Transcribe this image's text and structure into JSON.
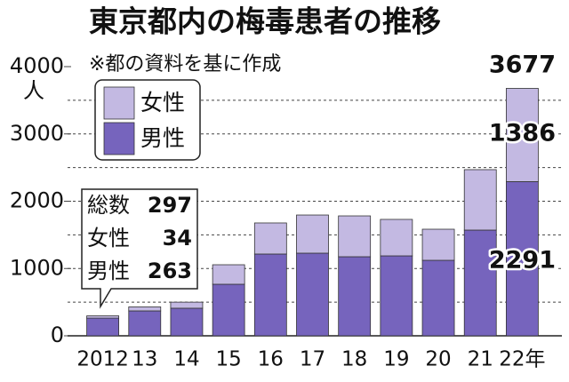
{
  "chart_data": {
    "type": "stacked_bar",
    "title": "東京都内の梅毒患者の推移",
    "subtitle": "※都の資料を基に作成",
    "y_label": "人",
    "categories": [
      "2012",
      "13",
      "14",
      "15",
      "16",
      "17",
      "18",
      "19",
      "20",
      "21",
      "22年"
    ],
    "series": [
      {
        "name": "男性",
        "color": "#7664bd",
        "values": [
          263,
          370,
          410,
          766,
          1215,
          1228,
          1175,
          1188,
          1122,
          1571,
          2291
        ]
      },
      {
        "name": "女性",
        "color": "#c3b9e2",
        "values": [
          34,
          60,
          90,
          290,
          462,
          567,
          607,
          542,
          462,
          898,
          1386
        ]
      }
    ],
    "callout": {
      "label": "総数",
      "total": 297
    },
    "latest_total": 3677,
    "ylim": [
      0,
      4000
    ],
    "yticks": [
      0,
      1000,
      2000,
      3000,
      4000
    ],
    "gridlines": [
      500,
      1000,
      1500,
      2000,
      2500,
      3000,
      3500
    ],
    "grid": true
  }
}
